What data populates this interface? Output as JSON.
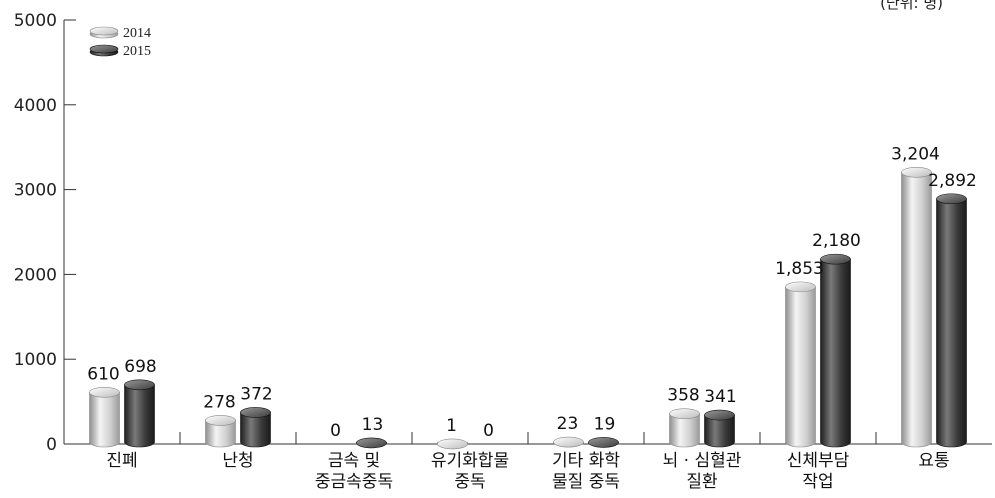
{
  "unit_label": "(단위: 명)",
  "chart_data": {
    "type": "bar",
    "style": "3d-cylinder",
    "categories": [
      [
        "진폐"
      ],
      [
        "난청"
      ],
      [
        "금속 및",
        "중금속중독"
      ],
      [
        "유기화합물",
        "중독"
      ],
      [
        "기타 화학",
        "물질 중독"
      ],
      [
        "뇌 · 심혈관",
        "질환"
      ],
      [
        "신체부담",
        "작업"
      ],
      [
        "요통"
      ]
    ],
    "series": [
      {
        "name": "2014",
        "values": [
          610,
          278,
          0,
          1,
          23,
          358,
          1853,
          3204
        ],
        "labels": [
          "610",
          "278",
          "0",
          "1",
          "23",
          "358",
          "1,853",
          "3,204"
        ],
        "color": "#c8c8c8"
      },
      {
        "name": "2015",
        "values": [
          698,
          372,
          13,
          0,
          19,
          341,
          2180,
          2892
        ],
        "labels": [
          "698",
          "372",
          "13",
          "0",
          "19",
          "341",
          "2,180",
          "2,892"
        ],
        "color": "#3a3a3a"
      }
    ],
    "y_ticks": [
      "0",
      "1000",
      "2000",
      "3000",
      "4000",
      "5000"
    ],
    "ylim": [
      0,
      5000
    ],
    "legend_position": "top-left",
    "grid": false
  }
}
